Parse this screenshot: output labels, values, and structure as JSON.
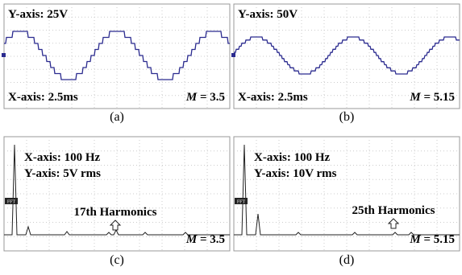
{
  "panels": [
    {
      "caption": "(a)",
      "lines": [
        "Y-axis: 25V",
        "X-axis: 2.5ms"
      ],
      "m_symbol": "M",
      "m_value": "= 3.5"
    },
    {
      "caption": "(b)",
      "lines": [
        "Y-axis: 50V",
        "X-axis: 2.5ms"
      ],
      "m_symbol": "M",
      "m_value": "= 5.15"
    },
    {
      "caption": "(c)",
      "lines": [
        "X-axis: 100 Hz",
        "Y-axis: 5V rms"
      ],
      "annotation": "17th Harmonics",
      "marker": "FFT",
      "m_symbol": "M",
      "m_value": "= 3.5"
    },
    {
      "caption": "(d)",
      "lines": [
        "X-axis: 100 Hz",
        "Y-axis: 10V rms"
      ],
      "annotation": "25th Harmonics",
      "marker": "FFT",
      "m_symbol": "M",
      "m_value": "= 5.15"
    }
  ]
}
